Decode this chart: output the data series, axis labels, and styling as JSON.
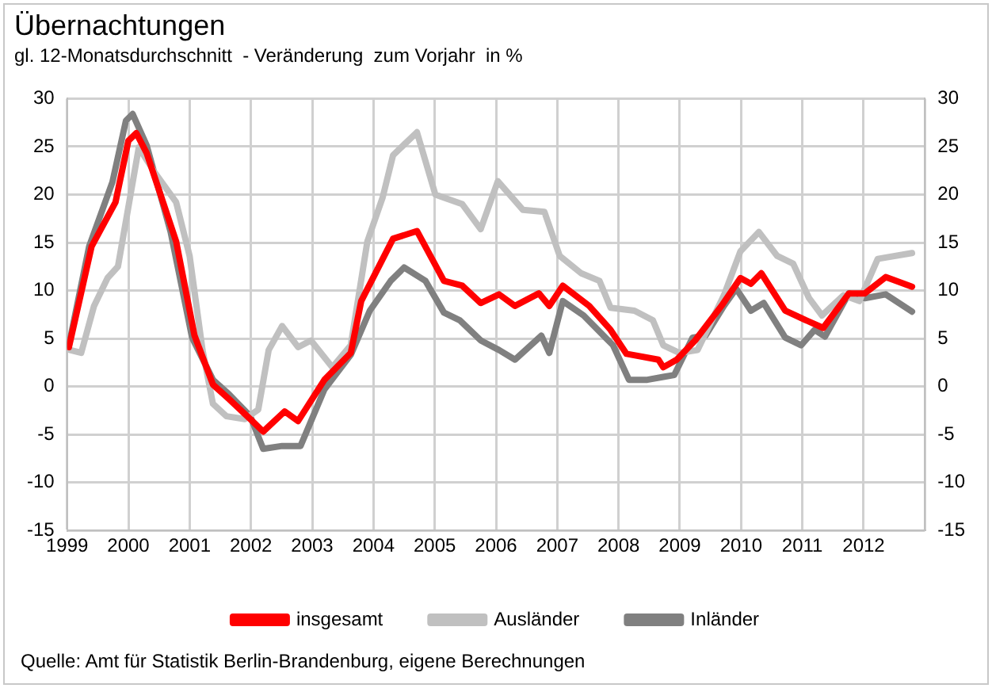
{
  "chart_data": {
    "type": "line",
    "title": "Übernachtungen",
    "subtitle": "gl. 12-Monatsdurchschnitt  - Veränderung  zum Vorjahr  in %",
    "annotations": [
      "Quelle: Amt für Statistik Berlin-Brandenburg, eigene Berechnungen"
    ],
    "xlim": [
      1999,
      2013
    ],
    "xticks": [
      1999,
      2000,
      2001,
      2002,
      2003,
      2004,
      2005,
      2006,
      2007,
      2008,
      2009,
      2010,
      2011,
      2012,
      {
        "value": 2013,
        "label": null
      }
    ],
    "ylim": [
      -15,
      30
    ],
    "yticks": [
      -15,
      -10,
      -5,
      0,
      5,
      10,
      15,
      20,
      25,
      30
    ],
    "y2lim": [
      -15,
      30
    ],
    "y2ticks": [
      -15,
      -10,
      -5,
      0,
      5,
      10,
      15,
      20,
      25,
      30
    ],
    "grid": true,
    "legend": "bottom",
    "marker": "none",
    "line_style": "solid",
    "series": [
      {
        "name": "insgesamt",
        "color": "#ff0000",
        "x": [
          1999.03,
          1999.4,
          1999.79,
          2000.0,
          2000.13,
          2000.3,
          2000.78,
          2001.08,
          2001.38,
          2001.64,
          2001.99,
          2002.2,
          2002.55,
          2002.77,
          2003.2,
          2003.63,
          2003.8,
          2004.32,
          2004.71,
          2005.15,
          2005.45,
          2005.75,
          2006.05,
          2006.31,
          2006.7,
          2006.87,
          2007.09,
          2007.52,
          2007.87,
          2008.13,
          2008.65,
          2008.73,
          2008.95,
          2009.25,
          2009.68,
          2009.99,
          2010.16,
          2010.33,
          2010.72,
          2011.06,
          2011.34,
          2011.76,
          2012.02,
          2012.36,
          2012.79
        ],
        "values": [
          4.1,
          14.6,
          19.2,
          25.6,
          26.4,
          24.3,
          15.1,
          5.3,
          0.2,
          -1.3,
          -3.4,
          -4.7,
          -2.6,
          -3.6,
          0.7,
          3.5,
          8.9,
          15.4,
          16.2,
          11.0,
          10.5,
          8.7,
          9.6,
          8.4,
          9.7,
          8.4,
          10.5,
          8.4,
          5.9,
          3.4,
          2.8,
          2.0,
          2.8,
          4.8,
          8.4,
          11.3,
          10.7,
          11.8,
          7.9,
          6.9,
          6.1,
          9.7,
          9.7,
          11.4,
          10.4
        ]
      },
      {
        "name": "Ausländer",
        "color": "#c0c0c0",
        "x": [
          1999.05,
          1999.23,
          1999.44,
          1999.66,
          1999.83,
          2000.0,
          2000.17,
          2000.43,
          2000.78,
          2001.0,
          2001.21,
          2001.38,
          2001.6,
          2001.9,
          2002.12,
          2002.29,
          2002.51,
          2002.77,
          2002.98,
          2003.33,
          2003.63,
          2003.9,
          2004.15,
          2004.32,
          2004.71,
          2005.01,
          2005.45,
          2005.75,
          2006.03,
          2006.44,
          2006.79,
          2007.04,
          2007.39,
          2007.69,
          2007.87,
          2008.26,
          2008.56,
          2008.73,
          2008.99,
          2009.29,
          2009.72,
          2009.99,
          2010.29,
          2010.59,
          2010.85,
          2011.11,
          2011.32,
          2011.67,
          2011.93,
          2012.23,
          2012.79
        ],
        "values": [
          3.8,
          3.5,
          8.4,
          11.3,
          12.5,
          18.7,
          24.9,
          22.3,
          19.2,
          13.6,
          3.8,
          -1.8,
          -3.1,
          -3.4,
          -2.4,
          3.8,
          6.3,
          4.1,
          4.8,
          2.0,
          4.3,
          15.1,
          19.7,
          24.1,
          26.5,
          20.0,
          19.0,
          16.4,
          21.4,
          18.4,
          18.2,
          13.6,
          11.8,
          11.0,
          8.2,
          7.9,
          6.9,
          4.3,
          3.5,
          3.8,
          9.5,
          14.1,
          16.1,
          13.6,
          12.8,
          9.2,
          7.4,
          9.5,
          8.9,
          13.3,
          13.9
        ]
      },
      {
        "name": "Inländer",
        "color": "#808080",
        "x": [
          1999.03,
          1999.36,
          1999.74,
          1999.96,
          2000.07,
          2000.3,
          2000.69,
          2001.04,
          2001.38,
          2001.64,
          2001.99,
          2002.2,
          2002.51,
          2002.81,
          2003.2,
          2003.63,
          2003.94,
          2004.28,
          2004.5,
          2004.85,
          2005.15,
          2005.41,
          2005.75,
          2006.05,
          2006.31,
          2006.74,
          2006.87,
          2007.09,
          2007.43,
          2007.91,
          2008.17,
          2008.47,
          2008.73,
          2008.91,
          2009.21,
          2009.42,
          2009.72,
          2009.92,
          2010.16,
          2010.37,
          2010.72,
          2010.98,
          2011.2,
          2011.37,
          2011.76,
          2012.02,
          2012.36,
          2012.79
        ],
        "values": [
          4.3,
          14.6,
          21.3,
          27.7,
          28.4,
          25.1,
          16.1,
          5.1,
          0.7,
          -0.8,
          -3.1,
          -6.5,
          -6.2,
          -6.2,
          -0.3,
          3.3,
          7.9,
          11.0,
          12.4,
          11.0,
          7.7,
          6.9,
          4.8,
          3.8,
          2.8,
          5.3,
          3.5,
          8.9,
          7.4,
          4.3,
          0.7,
          0.7,
          1.0,
          1.2,
          5.1,
          5.3,
          8.4,
          10.2,
          7.9,
          8.7,
          5.1,
          4.3,
          5.9,
          5.2,
          9.7,
          9.2,
          9.6,
          7.8
        ]
      }
    ]
  }
}
